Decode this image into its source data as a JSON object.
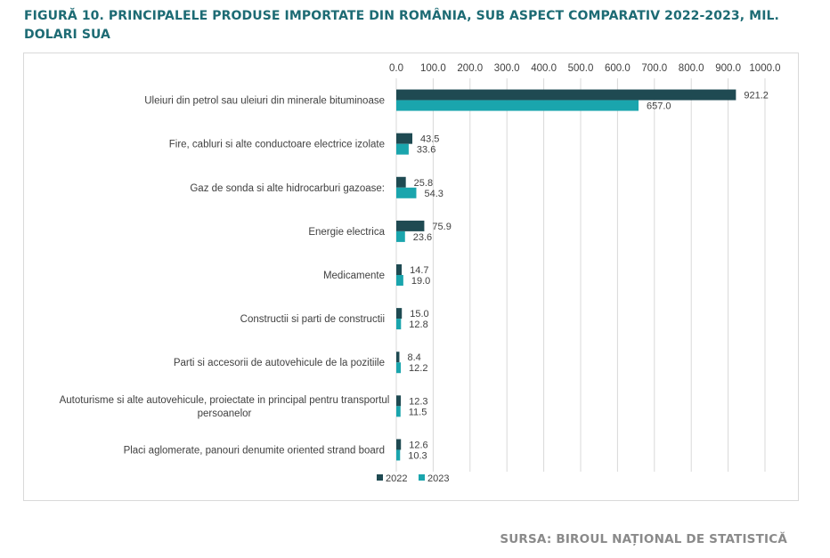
{
  "title": "FIGURĂ 10. PRINCIPALELE PRODUSE IMPORTATE DIN ROMÂNIA, SUB ASPECT COMPARATIV 2022-2023, MIL. DOLARI SUA",
  "source": "SURSA: BIROUL NAȚIONAL DE STATISTICĂ",
  "colors": {
    "title": "#1d6b74",
    "s2022": "#1f4a52",
    "s2023": "#1aa5ad",
    "grid": "#d9d9d9"
  },
  "chart_data": {
    "type": "bar",
    "orientation": "horizontal",
    "categories": [
      [
        "Uleiuri din petrol sau uleiuri din minerale bituminoase"
      ],
      [
        "Fire, cabluri si alte conductoare electrice izolate"
      ],
      [
        "Gaz de sonda si alte hidrocarburi gazoase:"
      ],
      [
        "Energie electrica"
      ],
      [
        "Medicamente"
      ],
      [
        "Constructii si parti de constructii"
      ],
      [
        "Parti si accesorii de autovehicule de la pozitiile"
      ],
      [
        "Autoturisme si alte autovehicule, proiectate in principal pentru transportul",
        "persoanelor"
      ],
      [
        "Placi aglomerate, panouri denumite  oriented strand board"
      ]
    ],
    "series": [
      {
        "name": "2022",
        "values": [
          921.2,
          43.5,
          25.8,
          75.9,
          14.7,
          15.0,
          8.4,
          12.3,
          12.6
        ]
      },
      {
        "name": "2023",
        "values": [
          657.0,
          33.6,
          54.3,
          23.6,
          19.0,
          12.8,
          12.2,
          11.5,
          10.3
        ]
      }
    ],
    "xlim": [
      0,
      1000
    ],
    "xticks": [
      "0.0",
      "100.0",
      "200.0",
      "300.0",
      "400.0",
      "500.0",
      "600.0",
      "700.0",
      "800.0",
      "900.0",
      "1000.0"
    ],
    "axis_position": "top",
    "grid": true,
    "legend": "bottom"
  }
}
